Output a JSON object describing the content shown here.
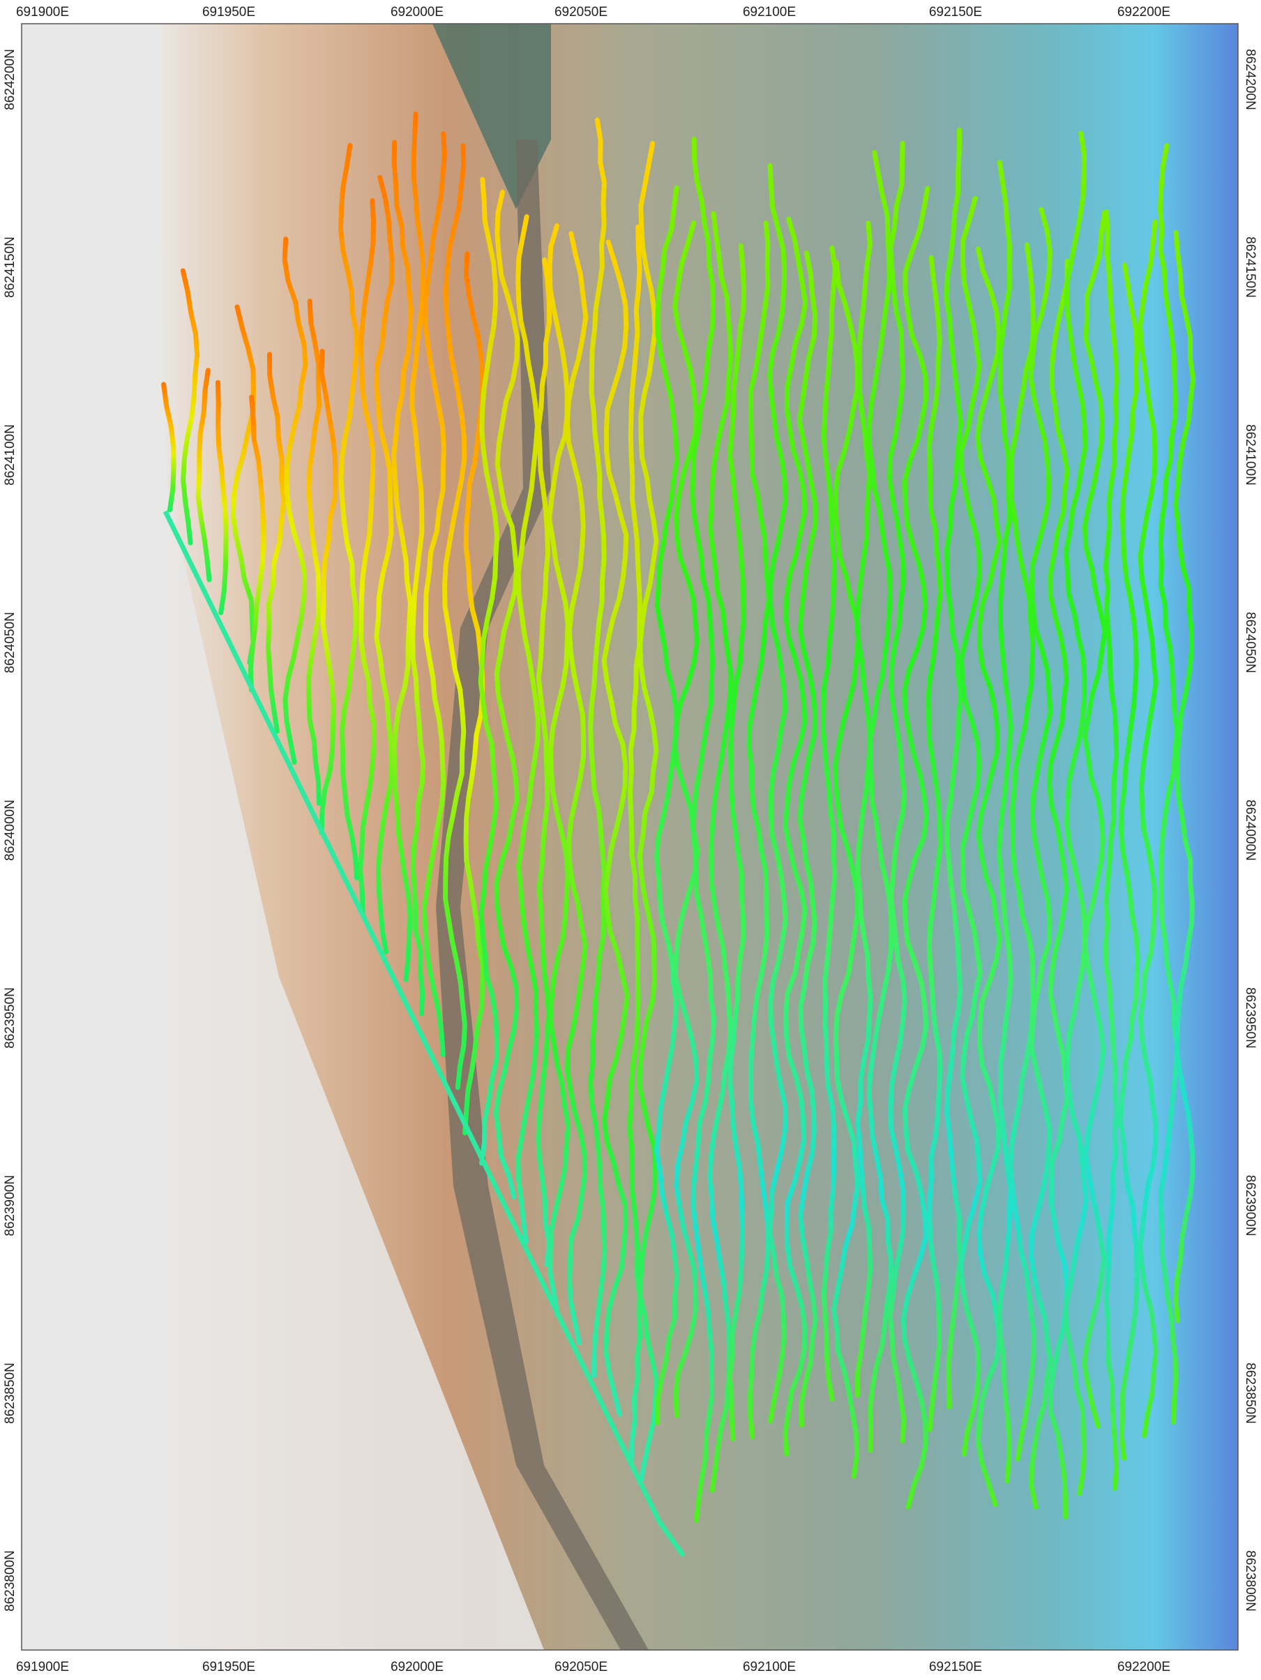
{
  "map": {
    "x_labels": [
      "691900E",
      "691950E",
      "692000E",
      "692050E",
      "692100E",
      "692150E",
      "692200E"
    ],
    "y_labels": [
      "8624200N",
      "8624150N",
      "8624100N",
      "8624050N",
      "8624000N",
      "8623950N",
      "8623900N",
      "8623850N",
      "8623800N"
    ]
  }
}
